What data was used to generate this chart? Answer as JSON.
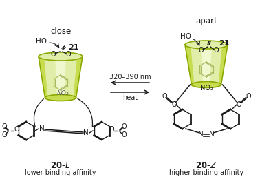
{
  "title_left": "close",
  "title_right": "apart",
  "label_left_main": "20-E",
  "label_right_main": "20-Z",
  "label_left_sub": "lower binding affinity",
  "label_right_sub": "higher binding affinity",
  "arrow_top": "320–390 nm",
  "arrow_bottom": "heat",
  "compound_number": "21",
  "calixarene_edge": "#8aaa00",
  "calixarene_fill": "#c8dc50",
  "calixarene_fill_light": "#e0eeaa",
  "calixarene_fill_inner": "#f0f8d0",
  "bg_color": "#ffffff",
  "line_color": "#1a1a1a",
  "fig_width": 3.78,
  "fig_height": 2.6,
  "dpi": 100
}
